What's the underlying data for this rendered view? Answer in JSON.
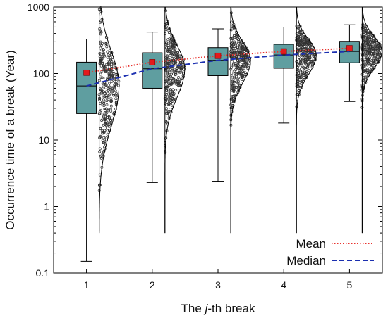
{
  "chart_data": {
    "type": "box",
    "xlabel_prefix": "The ",
    "xlabel_italic": "j",
    "xlabel_suffix": "-th break",
    "ylabel": "Occurrence time of a break (Year)",
    "yscale": "log",
    "ylim": [
      0.1,
      1000
    ],
    "categories": [
      "1",
      "2",
      "3",
      "4",
      "5"
    ],
    "y_tick_labels": [
      "0.1",
      "1",
      "10",
      "100",
      "1000"
    ],
    "y_tick_values": [
      0.1,
      1,
      10,
      100,
      1000
    ],
    "boxes": [
      {
        "whisker_low": 0.15,
        "q1": 25,
        "median": 65,
        "q3": 148,
        "whisker_high": 330,
        "mean": 103
      },
      {
        "whisker_low": 2.3,
        "q1": 60,
        "median": 118,
        "q3": 205,
        "whisker_high": 420,
        "mean": 148
      },
      {
        "whisker_low": 2.4,
        "q1": 93,
        "median": 158,
        "q3": 245,
        "whisker_high": 470,
        "mean": 185
      },
      {
        "whisker_low": 18,
        "q1": 120,
        "median": 190,
        "q3": 275,
        "whisker_high": 500,
        "mean": 215
      },
      {
        "whisker_low": 38,
        "q1": 145,
        "median": 215,
        "q3": 305,
        "whisker_high": 540,
        "mean": 240
      }
    ],
    "legend": {
      "position": "bottom-right",
      "mean_label": "Mean",
      "median_label": "Median"
    },
    "colors": {
      "box_fill": "#5f9ea0",
      "mean_line": "#e8332f",
      "median_line": "#1b2fb0",
      "mean_marker": "#e41a1c",
      "points": "#333333"
    },
    "grid": false
  }
}
